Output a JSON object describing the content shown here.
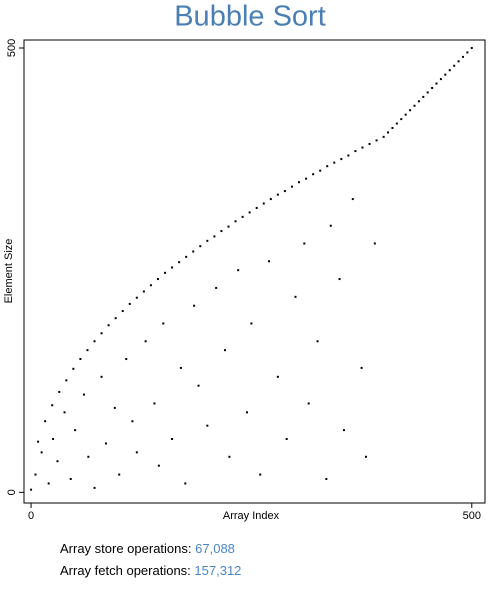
{
  "chart_data": {
    "type": "scatter",
    "title": "Bubble Sort",
    "x_label": "Array Index",
    "y_label": "Element Size",
    "color": "#000000",
    "x": [
      0,
      8,
      16,
      24,
      32,
      40,
      48,
      56,
      64,
      72,
      80,
      88,
      96,
      104,
      112,
      120,
      128,
      136,
      144,
      152,
      160,
      168,
      176,
      184,
      192,
      200,
      208,
      216,
      224,
      232,
      240,
      248,
      256,
      264,
      272,
      280,
      288,
      296,
      304,
      312,
      320,
      328,
      336,
      344,
      352,
      360,
      368,
      376,
      384,
      392,
      400,
      405,
      410,
      415,
      420,
      425,
      430,
      435,
      440,
      445,
      450,
      455,
      460,
      465,
      470,
      475,
      480,
      485,
      490,
      495,
      500,
      5,
      12,
      20,
      25,
      30,
      38,
      45,
      50,
      60,
      65,
      72,
      80,
      85,
      95,
      100,
      108,
      115,
      120,
      130,
      140,
      145,
      150,
      160,
      170,
      175,
      185,
      190,
      200,
      210,
      220,
      225,
      235,
      245,
      250,
      260,
      270,
      280,
      290,
      300,
      310,
      315,
      325,
      335,
      340,
      350,
      355,
      365,
      375,
      380,
      390
    ],
    "values": [
      3,
      57,
      80,
      98,
      113,
      126,
      139,
      150,
      160,
      170,
      179,
      188,
      196,
      204,
      212,
      219,
      226,
      233,
      240,
      247,
      253,
      259,
      265,
      271,
      277,
      283,
      288,
      294,
      299,
      305,
      310,
      315,
      320,
      325,
      330,
      335,
      339,
      344,
      349,
      353,
      358,
      362,
      367,
      371,
      375,
      379,
      384,
      388,
      392,
      396,
      400,
      405,
      410,
      415,
      420,
      425,
      430,
      435,
      440,
      445,
      450,
      455,
      460,
      465,
      470,
      475,
      480,
      485,
      490,
      495,
      500,
      20,
      45,
      10,
      60,
      35,
      90,
      15,
      70,
      110,
      40,
      5,
      130,
      55,
      95,
      20,
      150,
      80,
      45,
      170,
      100,
      30,
      190,
      60,
      140,
      10,
      210,
      120,
      75,
      230,
      160,
      40,
      250,
      90,
      190,
      20,
      260,
      130,
      60,
      220,
      280,
      100,
      170,
      15,
      300,
      240,
      70,
      330,
      140,
      40,
      280
    ],
    "xlim": [
      -8,
      515
    ],
    "ylim": [
      -12,
      509
    ],
    "xticks": [
      0,
      500
    ],
    "yticks": [
      0,
      500
    ]
  },
  "stats": [
    {
      "label": "Array store operations:",
      "value": "67,088"
    },
    {
      "label": "Array fetch operations:",
      "value": "157,312"
    }
  ]
}
